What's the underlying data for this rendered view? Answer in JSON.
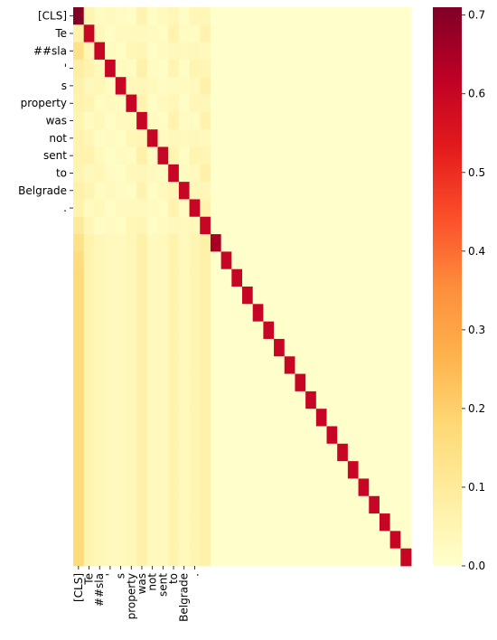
{
  "chart_data": {
    "type": "heatmap",
    "title": "",
    "xlabel": "",
    "ylabel": "",
    "tokens": [
      "[CLS]",
      "Te",
      "##sla",
      "'",
      "s",
      "property",
      "was",
      "not",
      "sent",
      "to",
      "Belgrade",
      "."
    ],
    "n_rows": 32,
    "n_cols": 32,
    "colormap": "YlOrRd",
    "vmin": 0.0,
    "vmax": 0.71,
    "colorbar_ticks": [
      0.0,
      0.1,
      0.2,
      0.3,
      0.4,
      0.5,
      0.6,
      0.7
    ],
    "colorbar_tick_labels": [
      "0.0",
      "0.1",
      "0.2",
      "0.3",
      "0.4",
      "0.5",
      "0.6",
      "0.7"
    ],
    "diagonal_value": 0.6,
    "diagonal_overrides": {
      "0": 0.71,
      "13": 0.65
    },
    "first_column_values": [
      0.71,
      0.07,
      0.14,
      0.08,
      0.07,
      0.06,
      0.05,
      0.06,
      0.06,
      0.05,
      0.07,
      0.06,
      0.1,
      0.14,
      0.16,
      0.17,
      0.17,
      0.17,
      0.17,
      0.17,
      0.17,
      0.17,
      0.17,
      0.17,
      0.17,
      0.17,
      0.17,
      0.17,
      0.17,
      0.17,
      0.17,
      0.17
    ],
    "column_background": [
      0.15,
      0.06,
      0.04,
      0.03,
      0.03,
      0.04,
      0.07,
      0.03,
      0.03,
      0.06,
      0.03,
      0.05,
      0.07,
      0.0,
      0.0,
      0.0,
      0.0,
      0.0,
      0.0,
      0.0,
      0.0,
      0.0,
      0.0,
      0.0,
      0.0,
      0.0,
      0.0,
      0.0,
      0.0,
      0.0,
      0.0,
      0.0
    ],
    "other_cells": "approximately 0.0-0.1 outside the diagonal and the first 13 columns"
  }
}
